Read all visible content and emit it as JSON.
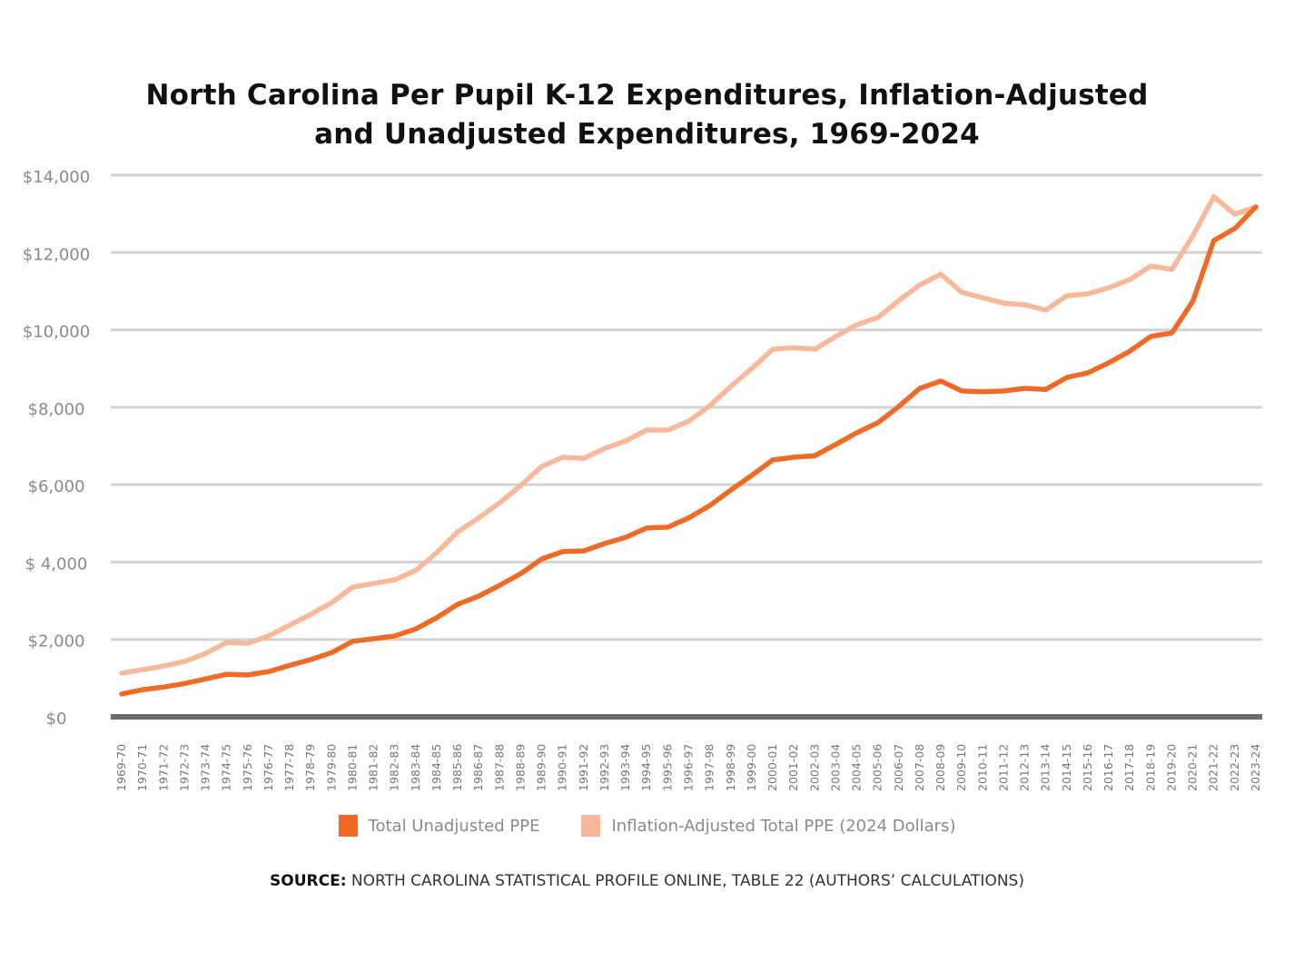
{
  "chart_data": {
    "type": "line",
    "title": "North Carolina Per Pupil K-12 Expenditures, Inflation-Adjusted and Unadjusted Expenditures, 1969-2024",
    "title_lines": [
      "North Carolina Per Pupil K-12 Expenditures, Inflation-Adjusted",
      "and Unadjusted Expenditures, 1969-2024"
    ],
    "xlabel": "",
    "ylabel": "",
    "ylim": [
      0,
      14000
    ],
    "yticks": [
      0,
      2000,
      4000,
      6000,
      8000,
      10000,
      12000,
      14000
    ],
    "ytick_labels": [
      "$0",
      "$2,000",
      "$ 4,000",
      "$6,000",
      "$8,000",
      "$10,000",
      "$12,000",
      "$14,000"
    ],
    "grid": true,
    "legend_position": "bottom",
    "x": [
      "1969-70",
      "1970-71",
      "1971-72",
      "1972-73",
      "1973-74",
      "1974-75",
      "1975-76",
      "1976-77",
      "1977-78",
      "1978-79",
      "1979-80",
      "1980-81",
      "1981-82",
      "1982-83",
      "1983-84",
      "1984-85",
      "1985-86",
      "1986-87",
      "1987-88",
      "1988-89",
      "1989-90",
      "1990-91",
      "1991-92",
      "1992-93",
      "1993-94",
      "1994-95",
      "1995-96",
      "1996-97",
      "1997-98",
      "1998-99",
      "1999-00",
      "2000-01",
      "2001-02",
      "2002-03",
      "2003-04",
      "2004-05",
      "2005-06",
      "2006-07",
      "2007-08",
      "2008-09",
      "2009-10",
      "2010-11",
      "2011-12",
      "2012-13",
      "2013-14",
      "2014-15",
      "2015-16",
      "2016-17",
      "2017-18",
      "2018-19",
      "2019-20",
      "2020-21",
      "2021-22",
      "2022-23",
      "2023-24"
    ],
    "series": [
      {
        "name": "Total Unadjusted PPE",
        "color": "#f06a25",
        "values": [
          590,
          700,
          770,
          860,
          980,
          1100,
          1080,
          1170,
          1330,
          1480,
          1660,
          1950,
          2020,
          2090,
          2270,
          2560,
          2910,
          3120,
          3400,
          3700,
          4080,
          4270,
          4290,
          4480,
          4640,
          4880,
          4900,
          5140,
          5460,
          5860,
          6240,
          6640,
          6710,
          6750,
          7040,
          7340,
          7600,
          8020,
          8490,
          8680,
          8420,
          8400,
          8420,
          8490,
          8460,
          8770,
          8890,
          9150,
          9450,
          9830,
          9920,
          10740,
          12310,
          12620,
          13180
        ]
      },
      {
        "name": "Inflation-Adjusted Total PPE (2024 Dollars)",
        "color": "#f8b899",
        "values": [
          1130,
          1220,
          1310,
          1430,
          1640,
          1920,
          1900,
          2090,
          2370,
          2650,
          2950,
          3350,
          3450,
          3540,
          3780,
          4240,
          4780,
          5140,
          5530,
          5980,
          6470,
          6710,
          6680,
          6940,
          7130,
          7410,
          7410,
          7640,
          8040,
          8540,
          9000,
          9500,
          9540,
          9500,
          9830,
          10130,
          10320,
          10760,
          11160,
          11440,
          10970,
          10830,
          10690,
          10650,
          10510,
          10880,
          10930,
          11090,
          11300,
          11650,
          11560,
          12430,
          13440,
          12990,
          13180
        ]
      }
    ]
  },
  "source": {
    "label": "SOURCE:",
    "text": " NORTH CAROLINA STATISTICAL PROFILE ONLINE, TABLE 22 (AUTHORS’ CALCULATIONS)"
  },
  "colors": {
    "grid": "#d3d3d3",
    "axis": "#6b6b6b"
  }
}
